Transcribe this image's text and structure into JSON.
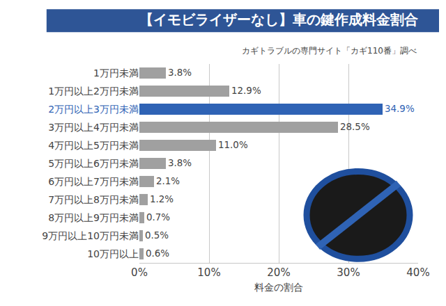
{
  "chart_data": {
    "type": "bar",
    "orientation": "horizontal",
    "title": "【イモビライザーなし】車の鍵作成料金割合",
    "subtitle": "カギトラブルの専門サイト「カギ110番」調べ",
    "x_label": "料金の割合",
    "categories": [
      "1万円未満",
      "1万円以上2万円未満",
      "2万円以上3万円未満",
      "3万円以上4万円未満",
      "4万円以上5万円未満",
      "5万円以上6万円未満",
      "6万円以上7万円未満",
      "7万円以上8万円未満",
      "8万円以上9万円未満",
      "9万円以上10万円未満",
      "10万円以上"
    ],
    "values": [
      3.8,
      12.9,
      34.9,
      28.5,
      11.0,
      3.8,
      2.1,
      1.2,
      0.7,
      0.5,
      0.6
    ],
    "value_labels": [
      "3.8%",
      "12.9%",
      "34.9%",
      "28.5%",
      "11.0%",
      "3.8%",
      "2.1%",
      "1.2%",
      "0.7%",
      "0.5%",
      "0.6%"
    ],
    "colors": [
      "#a0a0a0",
      "#a0a0a0",
      "#2f63b5",
      "#a0a0a0",
      "#a0a0a0",
      "#a0a0a0",
      "#a0a0a0",
      "#a0a0a0",
      "#a0a0a0",
      "#a0a0a0",
      "#a0a0a0"
    ],
    "xlim": [
      0,
      40
    ],
    "xticks": [
      {
        "value": 0,
        "label": "0%"
      },
      {
        "value": 10,
        "label": "10%"
      },
      {
        "value": 20,
        "label": "20%"
      },
      {
        "value": 30,
        "label": "30%"
      },
      {
        "value": 40,
        "label": "40%"
      }
    ],
    "grid": true,
    "data_labels": true
  }
}
